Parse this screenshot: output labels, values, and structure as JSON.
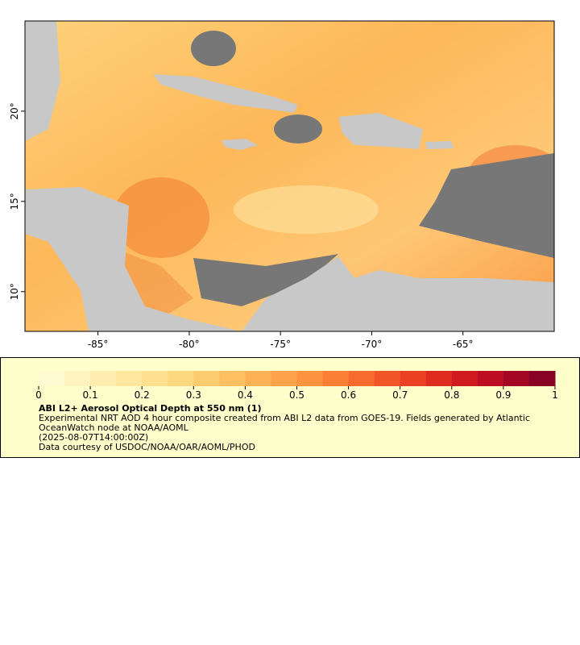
{
  "map": {
    "xlim": [
      -89,
      -60
    ],
    "ylim": [
      7.8,
      25
    ],
    "xticks": [
      {
        "value": -85,
        "label": "-85°"
      },
      {
        "value": -80,
        "label": "-80°"
      },
      {
        "value": -75,
        "label": "-75°"
      },
      {
        "value": -70,
        "label": "-70°"
      },
      {
        "value": -65,
        "label": "-65°"
      }
    ],
    "yticks": [
      {
        "value": 10,
        "label": "10°"
      },
      {
        "value": 15,
        "label": "15°"
      },
      {
        "value": 20,
        "label": "20°"
      }
    ]
  },
  "colorbar": {
    "lim": [
      0,
      1
    ],
    "ticks": [
      0,
      0.1,
      0.2,
      0.3,
      0.4,
      0.5,
      0.6,
      0.7,
      0.8,
      0.9,
      1
    ],
    "colors": [
      "#fffad2",
      "#fff4c0",
      "#ffeeb0",
      "#ffe7a0",
      "#fee08f",
      "#fed880",
      "#fecc70",
      "#febf62",
      "#fdb155",
      "#fda349",
      "#fc933f",
      "#fb8036",
      "#f86b2e",
      "#f25528",
      "#ea4024",
      "#de2c20",
      "#cf1b1f",
      "#bb0e22",
      "#a40724",
      "#880225"
    ],
    "title": "ABI L2+ Aerosol Optical Depth at 550 nm (1)",
    "description": "Experimental NRT AOD 4 hour composite created from ABI L2 data from GOES-19. Fields generated by Atlantic OceanWatch node at NOAA/AOML",
    "time": "(2025-08-07T14:00:00Z)",
    "credit": "Data courtesy of USDOC/NOAA/OAR/AOML/PHOD"
  }
}
